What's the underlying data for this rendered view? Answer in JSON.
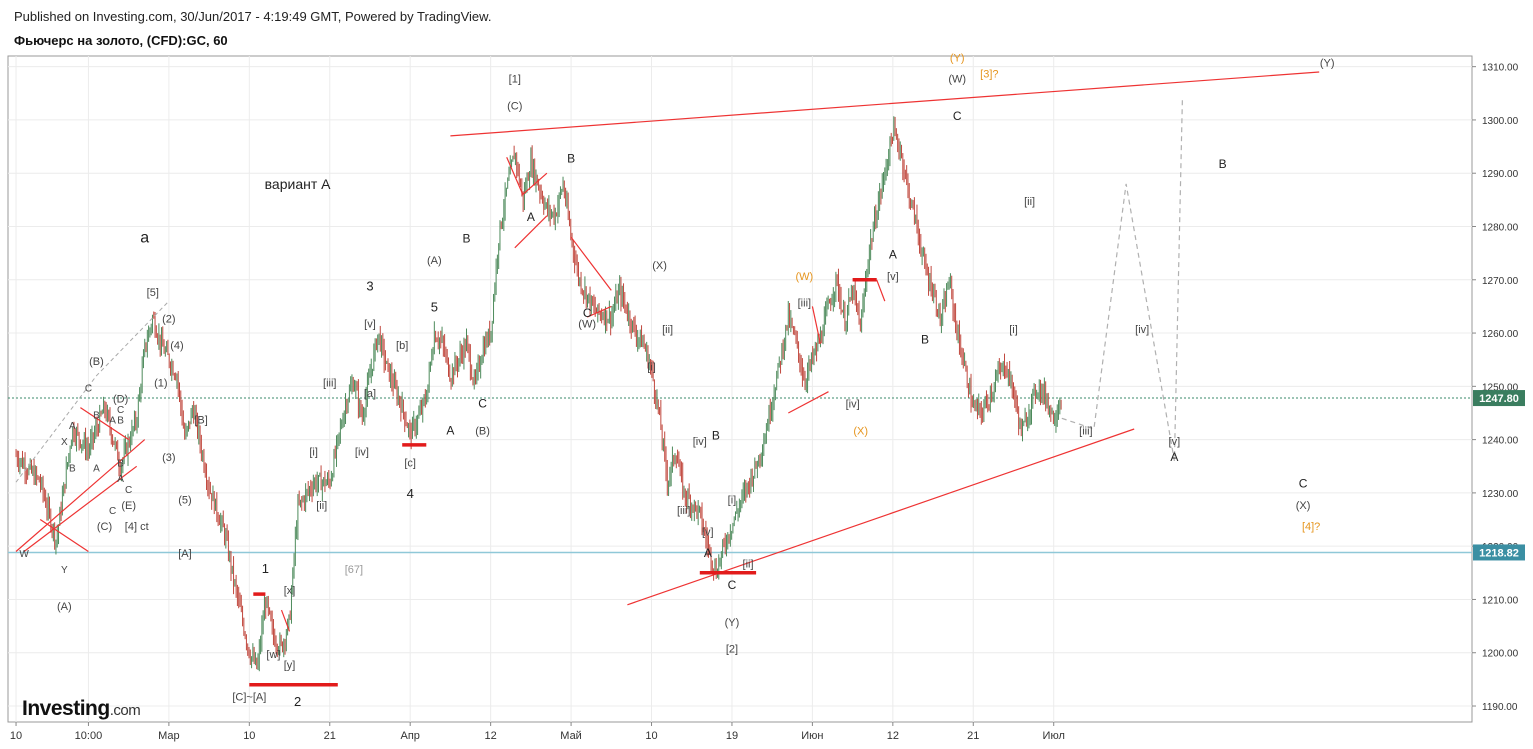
{
  "header": {
    "published": "Published on Investing.com, 30/Jun/2017 - 4:19:49 GMT, Powered by TradingView.",
    "symbol": "Фьючерс на золото, (CFD):GC, 60"
  },
  "logo": {
    "brand": "Investing",
    "domain": ".com"
  },
  "chart_data": {
    "type": "candlestick",
    "price_axis": {
      "ticks": [
        1190,
        1200,
        1210,
        1220,
        1230,
        1240,
        1250,
        1260,
        1270,
        1280,
        1290,
        1300,
        1310
      ],
      "tick_labels": [
        "1190.00",
        "1200.00",
        "1210.00",
        "1220.00",
        "1230.00",
        "1240.00",
        "1250.00",
        "1260.00",
        "1270.00",
        "1280.00",
        "1290.00",
        "1300.00",
        "1310.00"
      ],
      "current_price": "1247.80",
      "level_price": "1218.82",
      "range": [
        1187,
        1312
      ]
    },
    "time_axis": {
      "labels": [
        "10",
        "10:00",
        "Мар",
        "10",
        "21",
        "Апр",
        "12",
        "Май",
        "10",
        "19",
        "Июн",
        "12",
        "21",
        "Июл"
      ],
      "positions": [
        0,
        9,
        19,
        29,
        39,
        49,
        59,
        69,
        79,
        89,
        99,
        109,
        119,
        129
      ],
      "range": [
        -1,
        181
      ]
    },
    "price_path": [
      [
        0,
        1237
      ],
      [
        3,
        1232
      ],
      [
        5,
        1221
      ],
      [
        7,
        1242
      ],
      [
        9,
        1238
      ],
      [
        11,
        1246
      ],
      [
        13,
        1235
      ],
      [
        15,
        1244
      ],
      [
        16,
        1257
      ],
      [
        17,
        1263
      ],
      [
        18,
        1258
      ],
      [
        20,
        1252
      ],
      [
        21,
        1240
      ],
      [
        22,
        1246
      ],
      [
        24,
        1231
      ],
      [
        26,
        1222
      ],
      [
        27,
        1214
      ],
      [
        29,
        1200
      ],
      [
        30,
        1197
      ],
      [
        31,
        1210
      ],
      [
        32,
        1203
      ],
      [
        33,
        1201
      ],
      [
        34,
        1206
      ],
      [
        35,
        1227
      ],
      [
        37,
        1232
      ],
      [
        39,
        1232
      ],
      [
        41,
        1247
      ],
      [
        42,
        1251
      ],
      [
        43,
        1244
      ],
      [
        45,
        1260
      ],
      [
        46,
        1254
      ],
      [
        47,
        1250
      ],
      [
        48,
        1246
      ],
      [
        49,
        1241
      ],
      [
        50,
        1244
      ],
      [
        51,
        1248
      ],
      [
        52,
        1260
      ],
      [
        53,
        1258
      ],
      [
        54,
        1252
      ],
      [
        56,
        1258
      ],
      [
        57,
        1250
      ],
      [
        58,
        1257
      ],
      [
        59,
        1260
      ],
      [
        60,
        1278
      ],
      [
        61,
        1287
      ],
      [
        62,
        1294
      ],
      [
        63,
        1285
      ],
      [
        64,
        1292
      ],
      [
        66,
        1283
      ],
      [
        67,
        1282
      ],
      [
        68,
        1288
      ],
      [
        69,
        1278
      ],
      [
        70,
        1270
      ],
      [
        72,
        1264
      ],
      [
        74,
        1263
      ],
      [
        75,
        1268
      ],
      [
        77,
        1260
      ],
      [
        78,
        1258
      ],
      [
        79,
        1253
      ],
      [
        80,
        1244
      ],
      [
        81,
        1232
      ],
      [
        82,
        1238
      ],
      [
        83,
        1230
      ],
      [
        84,
        1228
      ],
      [
        85,
        1226
      ],
      [
        86,
        1220
      ],
      [
        87,
        1215
      ],
      [
        88,
        1220
      ],
      [
        89,
        1224
      ],
      [
        90,
        1228
      ],
      [
        92,
        1235
      ],
      [
        93,
        1240
      ],
      [
        95,
        1255
      ],
      [
        96,
        1263
      ],
      [
        97,
        1258
      ],
      [
        98,
        1251
      ],
      [
        99,
        1255
      ],
      [
        100,
        1259
      ],
      [
        101,
        1265
      ],
      [
        102,
        1270
      ],
      [
        103,
        1262
      ],
      [
        104,
        1268
      ],
      [
        105,
        1261
      ],
      [
        106,
        1275
      ],
      [
        107,
        1283
      ],
      [
        108,
        1290
      ],
      [
        109,
        1298
      ],
      [
        110,
        1294
      ],
      [
        111,
        1286
      ],
      [
        112,
        1280
      ],
      [
        113,
        1272
      ],
      [
        114,
        1268
      ],
      [
        115,
        1262
      ],
      [
        116,
        1270
      ],
      [
        117,
        1260
      ],
      [
        118,
        1253
      ],
      [
        119,
        1246
      ],
      [
        120,
        1245
      ],
      [
        121,
        1248
      ],
      [
        122,
        1252
      ],
      [
        123,
        1254
      ],
      [
        124,
        1249
      ],
      [
        125,
        1241
      ],
      [
        126,
        1246
      ],
      [
        127,
        1250
      ],
      [
        128,
        1248
      ],
      [
        129,
        1244
      ],
      [
        130,
        1248
      ]
    ],
    "projection_path": [
      [
        130,
        1244
      ],
      [
        134,
        1242
      ],
      [
        138,
        1288
      ],
      [
        144,
        1236
      ],
      [
        145,
        1304
      ]
    ],
    "early_projection": [
      [
        0,
        1232
      ],
      [
        10,
        1252
      ],
      [
        19,
        1266
      ]
    ],
    "trendlines": [
      [
        [
          54,
          1297
        ],
        [
          162,
          1309
        ]
      ],
      [
        [
          76,
          1209
        ],
        [
          139,
          1242
        ]
      ],
      [
        [
          0,
          1219
        ],
        [
          16,
          1240
        ]
      ],
      [
        [
          3,
          1225
        ],
        [
          9,
          1219
        ]
      ],
      [
        [
          8,
          1246
        ],
        [
          14,
          1240
        ]
      ],
      [
        [
          1,
          1219
        ],
        [
          15,
          1235
        ]
      ],
      [
        [
          61,
          1293
        ],
        [
          63,
          1286
        ],
        [
          66,
          1290
        ]
      ],
      [
        [
          62,
          1276
        ],
        [
          66,
          1282
        ]
      ],
      [
        [
          69,
          1278
        ],
        [
          71,
          1274
        ],
        [
          74,
          1268
        ]
      ],
      [
        [
          71,
          1263
        ],
        [
          74,
          1265
        ]
      ],
      [
        [
          96,
          1245
        ],
        [
          101,
          1249
        ]
      ],
      [
        [
          99,
          1265
        ],
        [
          100,
          1258
        ]
      ],
      [
        [
          107,
          1270
        ],
        [
          108,
          1266
        ]
      ],
      [
        [
          33,
          1208
        ],
        [
          34,
          1204
        ]
      ]
    ],
    "bold_levels": [
      [
        [
          29,
          1194
        ],
        [
          40,
          1194
        ]
      ],
      [
        [
          29.5,
          1211
        ],
        [
          31,
          1211
        ]
      ],
      [
        [
          48,
          1239
        ],
        [
          51,
          1239
        ]
      ],
      [
        [
          85,
          1215
        ],
        [
          92,
          1215
        ]
      ],
      [
        [
          104,
          1270
        ],
        [
          107,
          1270
        ]
      ]
    ],
    "annotations": [
      {
        "t": "вариант А",
        "x": 35,
        "p": 1287,
        "s": 14,
        "c": "#222"
      },
      {
        "t": "а",
        "x": 16,
        "p": 1277,
        "s": 16,
        "c": "#222"
      },
      {
        "t": "[1]",
        "x": 62,
        "p": 1307,
        "s": 11,
        "c": "#444"
      },
      {
        "t": "(C)",
        "x": 62,
        "p": 1302,
        "s": 11,
        "c": "#444"
      },
      {
        "t": "B",
        "x": 69,
        "p": 1292,
        "s": 12,
        "c": "#222"
      },
      {
        "t": "A",
        "x": 64,
        "p": 1281,
        "s": 12,
        "c": "#222"
      },
      {
        "t": "B",
        "x": 56,
        "p": 1277,
        "s": 12,
        "c": "#222"
      },
      {
        "t": "(A)",
        "x": 52,
        "p": 1273,
        "s": 11,
        "c": "#444"
      },
      {
        "t": "5",
        "x": 52,
        "p": 1264,
        "s": 13,
        "c": "#222"
      },
      {
        "t": "3",
        "x": 44,
        "p": 1268,
        "s": 13,
        "c": "#222"
      },
      {
        "t": "[v]",
        "x": 44,
        "p": 1261,
        "s": 11,
        "c": "#444"
      },
      {
        "t": "[b]",
        "x": 48,
        "p": 1257,
        "s": 11,
        "c": "#444"
      },
      {
        "t": "[iii]",
        "x": 39,
        "p": 1250,
        "s": 11,
        "c": "#444"
      },
      {
        "t": "[a]",
        "x": 44,
        "p": 1248,
        "s": 11,
        "c": "#444"
      },
      {
        "t": "[iv]",
        "x": 43,
        "p": 1237,
        "s": 11,
        "c": "#444"
      },
      {
        "t": "[c]",
        "x": 49,
        "p": 1235,
        "s": 11,
        "c": "#444"
      },
      {
        "t": "4",
        "x": 49,
        "p": 1229,
        "s": 13,
        "c": "#222"
      },
      {
        "t": "[i]",
        "x": 37,
        "p": 1237,
        "s": 11,
        "c": "#444"
      },
      {
        "t": "[ii]",
        "x": 38,
        "p": 1227,
        "s": 11,
        "c": "#444"
      },
      {
        "t": "[67]",
        "x": 42,
        "p": 1215,
        "s": 11,
        "c": "#999"
      },
      {
        "t": "A",
        "x": 54,
        "p": 1241,
        "s": 12,
        "c": "#222"
      },
      {
        "t": "C",
        "x": 58,
        "p": 1246,
        "s": 12,
        "c": "#222"
      },
      {
        "t": "(B)",
        "x": 58,
        "p": 1241,
        "s": 11,
        "c": "#444"
      },
      {
        "t": "[5]",
        "x": 17,
        "p": 1267,
        "s": 11,
        "c": "#444"
      },
      {
        "t": "(2)",
        "x": 19,
        "p": 1262,
        "s": 11,
        "c": "#444"
      },
      {
        "t": "(4)",
        "x": 20,
        "p": 1257,
        "s": 11,
        "c": "#444"
      },
      {
        "t": "(1)",
        "x": 18,
        "p": 1250,
        "s": 11,
        "c": "#444"
      },
      {
        "t": "[B]",
        "x": 23,
        "p": 1243,
        "s": 11,
        "c": "#444"
      },
      {
        "t": "(3)",
        "x": 19,
        "p": 1236,
        "s": 11,
        "c": "#444"
      },
      {
        "t": "(5)",
        "x": 21,
        "p": 1228,
        "s": 11,
        "c": "#444"
      },
      {
        "t": "[A]",
        "x": 21,
        "p": 1218,
        "s": 11,
        "c": "#444"
      },
      {
        "t": "(B)",
        "x": 10,
        "p": 1254,
        "s": 11,
        "c": "#444"
      },
      {
        "t": "(D)",
        "x": 13,
        "p": 1247,
        "s": 11,
        "c": "#444"
      },
      {
        "t": "C",
        "x": 9,
        "p": 1249,
        "s": 10,
        "c": "#444"
      },
      {
        "t": "C",
        "x": 13,
        "p": 1245,
        "s": 10,
        "c": "#444"
      },
      {
        "t": "B",
        "x": 10,
        "p": 1244,
        "s": 10,
        "c": "#444"
      },
      {
        "t": "A",
        "x": 12,
        "p": 1243,
        "s": 10,
        "c": "#444"
      },
      {
        "t": "B",
        "x": 13,
        "p": 1243,
        "s": 10,
        "c": "#444"
      },
      {
        "t": "A",
        "x": 7,
        "p": 1242,
        "s": 10,
        "c": "#444"
      },
      {
        "t": "X",
        "x": 6,
        "p": 1239,
        "s": 10,
        "c": "#444"
      },
      {
        "t": "B",
        "x": 7,
        "p": 1234,
        "s": 10,
        "c": "#444"
      },
      {
        "t": "A",
        "x": 10,
        "p": 1234,
        "s": 10,
        "c": "#444"
      },
      {
        "t": "B",
        "x": 13,
        "p": 1235,
        "s": 10,
        "c": "#444"
      },
      {
        "t": "A",
        "x": 13,
        "p": 1232,
        "s": 10,
        "c": "#444"
      },
      {
        "t": "C",
        "x": 14,
        "p": 1230,
        "s": 10,
        "c": "#444"
      },
      {
        "t": "(E)",
        "x": 14,
        "p": 1227,
        "s": 11,
        "c": "#444"
      },
      {
        "t": "C",
        "x": 12,
        "p": 1226,
        "s": 10,
        "c": "#444"
      },
      {
        "t": "(C)",
        "x": 11,
        "p": 1223,
        "s": 11,
        "c": "#444"
      },
      {
        "t": "[4] ct",
        "x": 15,
        "p": 1223,
        "s": 11,
        "c": "#444"
      },
      {
        "t": "W",
        "x": 1,
        "p": 1218,
        "s": 10,
        "c": "#444"
      },
      {
        "t": "Y",
        "x": 6,
        "p": 1215,
        "s": 10,
        "c": "#444"
      },
      {
        "t": "(A)",
        "x": 6,
        "p": 1208,
        "s": 11,
        "c": "#444"
      },
      {
        "t": "1",
        "x": 31,
        "p": 1215,
        "s": 13,
        "c": "#222"
      },
      {
        "t": "[x]",
        "x": 34,
        "p": 1211,
        "s": 11,
        "c": "#444"
      },
      {
        "t": "[w]",
        "x": 32,
        "p": 1199,
        "s": 11,
        "c": "#444"
      },
      {
        "t": "[y]",
        "x": 34,
        "p": 1197,
        "s": 11,
        "c": "#444"
      },
      {
        "t": "[C]~[A]",
        "x": 29,
        "p": 1191,
        "s": 11,
        "c": "#444"
      },
      {
        "t": "2",
        "x": 35,
        "p": 1190,
        "s": 13,
        "c": "#222"
      },
      {
        "t": "C",
        "x": 71,
        "p": 1263,
        "s": 12,
        "c": "#222"
      },
      {
        "t": "(W)",
        "x": 71,
        "p": 1261,
        "s": 11,
        "c": "#444"
      },
      {
        "t": "(X)",
        "x": 80,
        "p": 1272,
        "s": 11,
        "c": "#444"
      },
      {
        "t": "[ii]",
        "x": 81,
        "p": 1260,
        "s": 11,
        "c": "#444"
      },
      {
        "t": "[i]",
        "x": 79,
        "p": 1253,
        "s": 11,
        "c": "#444"
      },
      {
        "t": "[iv]",
        "x": 85,
        "p": 1239,
        "s": 11,
        "c": "#444"
      },
      {
        "t": "B",
        "x": 87,
        "p": 1240,
        "s": 12,
        "c": "#222"
      },
      {
        "t": "[iii]",
        "x": 83,
        "p": 1226,
        "s": 11,
        "c": "#444"
      },
      {
        "t": "[i]",
        "x": 89,
        "p": 1228,
        "s": 11,
        "c": "#444"
      },
      {
        "t": "[v]",
        "x": 86,
        "p": 1222,
        "s": 11,
        "c": "#444"
      },
      {
        "t": "A",
        "x": 86,
        "p": 1218,
        "s": 12,
        "c": "#222"
      },
      {
        "t": "[ii]",
        "x": 91,
        "p": 1216,
        "s": 11,
        "c": "#444"
      },
      {
        "t": "C",
        "x": 89,
        "p": 1212,
        "s": 12,
        "c": "#222"
      },
      {
        "t": "(Y)",
        "x": 89,
        "p": 1205,
        "s": 11,
        "c": "#444"
      },
      {
        "t": "[2]",
        "x": 89,
        "p": 1200,
        "s": 11,
        "c": "#444"
      },
      {
        "t": "(W)",
        "x": 98,
        "p": 1270,
        "s": 11,
        "c": "#e6951e"
      },
      {
        "t": "[iii]",
        "x": 98,
        "p": 1265,
        "s": 11,
        "c": "#444"
      },
      {
        "t": "A",
        "x": 109,
        "p": 1274,
        "s": 12,
        "c": "#222"
      },
      {
        "t": "[v]",
        "x": 109,
        "p": 1270,
        "s": 11,
        "c": "#444"
      },
      {
        "t": "[iv]",
        "x": 104,
        "p": 1246,
        "s": 11,
        "c": "#444"
      },
      {
        "t": "(X)",
        "x": 105,
        "p": 1241,
        "s": 11,
        "c": "#e6951e"
      },
      {
        "t": "B",
        "x": 113,
        "p": 1258,
        "s": 12,
        "c": "#222"
      },
      {
        "t": "(Y)",
        "x": 117,
        "p": 1311,
        "s": 11,
        "c": "#e6951e"
      },
      {
        "t": "(W)",
        "x": 117,
        "p": 1307,
        "s": 11,
        "c": "#444"
      },
      {
        "t": "[3]?",
        "x": 121,
        "p": 1308,
        "s": 11,
        "c": "#e6951e"
      },
      {
        "t": "C",
        "x": 117,
        "p": 1300,
        "s": 12,
        "c": "#222"
      },
      {
        "t": "[ii]",
        "x": 126,
        "p": 1284,
        "s": 11,
        "c": "#444"
      },
      {
        "t": "[i]",
        "x": 124,
        "p": 1260,
        "s": 11,
        "c": "#444"
      },
      {
        "t": "[iv]",
        "x": 140,
        "p": 1260,
        "s": 11,
        "c": "#444"
      },
      {
        "t": "[iii]",
        "x": 133,
        "p": 1241,
        "s": 11,
        "c": "#444"
      },
      {
        "t": "[v]",
        "x": 144,
        "p": 1239,
        "s": 11,
        "c": "#444"
      },
      {
        "t": "A",
        "x": 144,
        "p": 1236,
        "s": 12,
        "c": "#222"
      },
      {
        "t": "B",
        "x": 150,
        "p": 1291,
        "s": 12,
        "c": "#222"
      },
      {
        "t": "C",
        "x": 160,
        "p": 1231,
        "s": 12,
        "c": "#222"
      },
      {
        "t": "(X)",
        "x": 160,
        "p": 1227,
        "s": 11,
        "c": "#444"
      },
      {
        "t": "[4]?",
        "x": 161,
        "p": 1223,
        "s": 11,
        "c": "#e6951e"
      },
      {
        "t": "(Y)",
        "x": 163,
        "p": 1310,
        "s": 11,
        "c": "#444"
      }
    ]
  }
}
